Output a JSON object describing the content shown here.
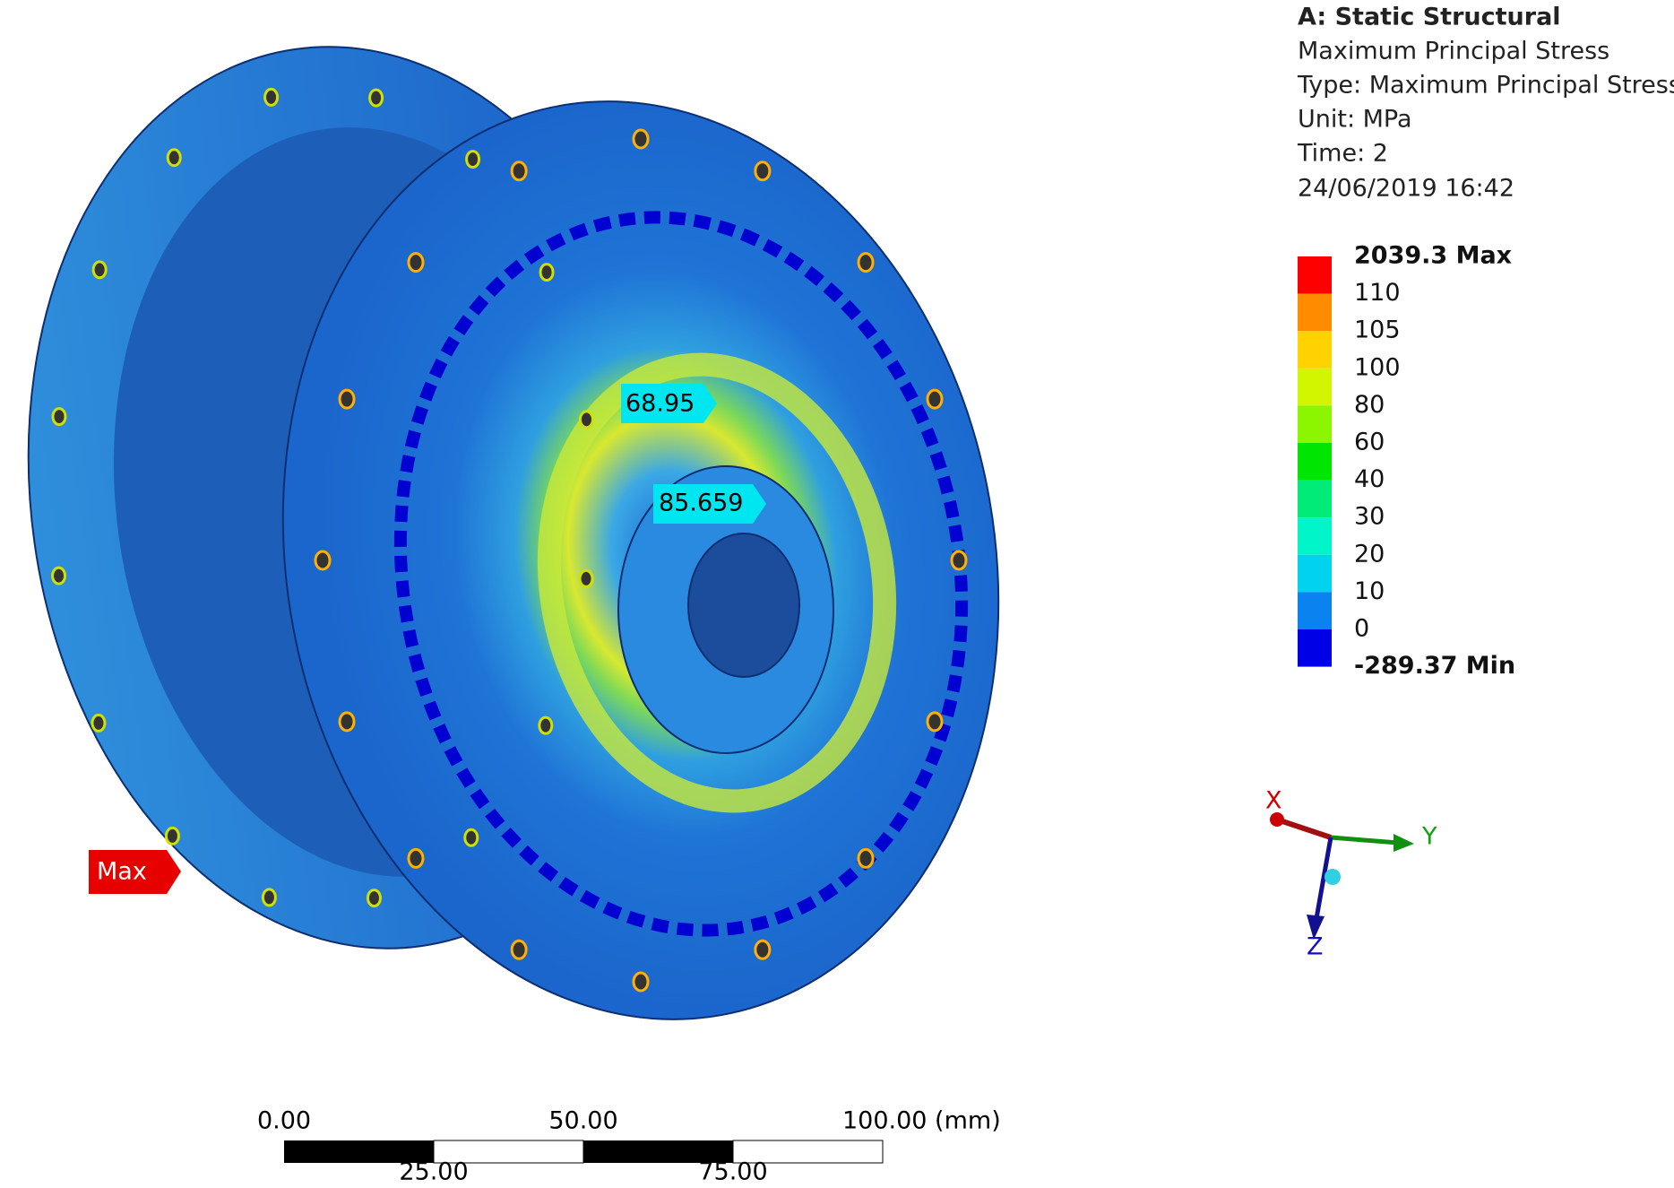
{
  "header": {
    "title": "A: Static Structural",
    "lines": [
      "Maximum Principal Stress",
      "Type: Maximum Principal Stress",
      "Unit: MPa",
      "Time: 2",
      "24/06/2019 16:42"
    ]
  },
  "legend": {
    "labels": [
      "2039.3 Max",
      "110",
      "105",
      "100",
      "80",
      "60",
      "40",
      "30",
      "20",
      "10",
      "0",
      "-289.37 Min"
    ],
    "colors": [
      "#ff0000",
      "#ff8c00",
      "#ffd200",
      "#d2f500",
      "#8cf500",
      "#00e600",
      "#00eb78",
      "#00f5c8",
      "#00d2f0",
      "#0a82f0",
      "#0000e6"
    ]
  },
  "probes": [
    "68.95",
    "85.659",
    "Max"
  ],
  "triad": [
    "X",
    "Y",
    "Z"
  ],
  "scale_bar": {
    "top": [
      "0.00",
      "50.00",
      "100.00 (mm)"
    ],
    "bottom": [
      "25.00",
      "75.00"
    ]
  }
}
